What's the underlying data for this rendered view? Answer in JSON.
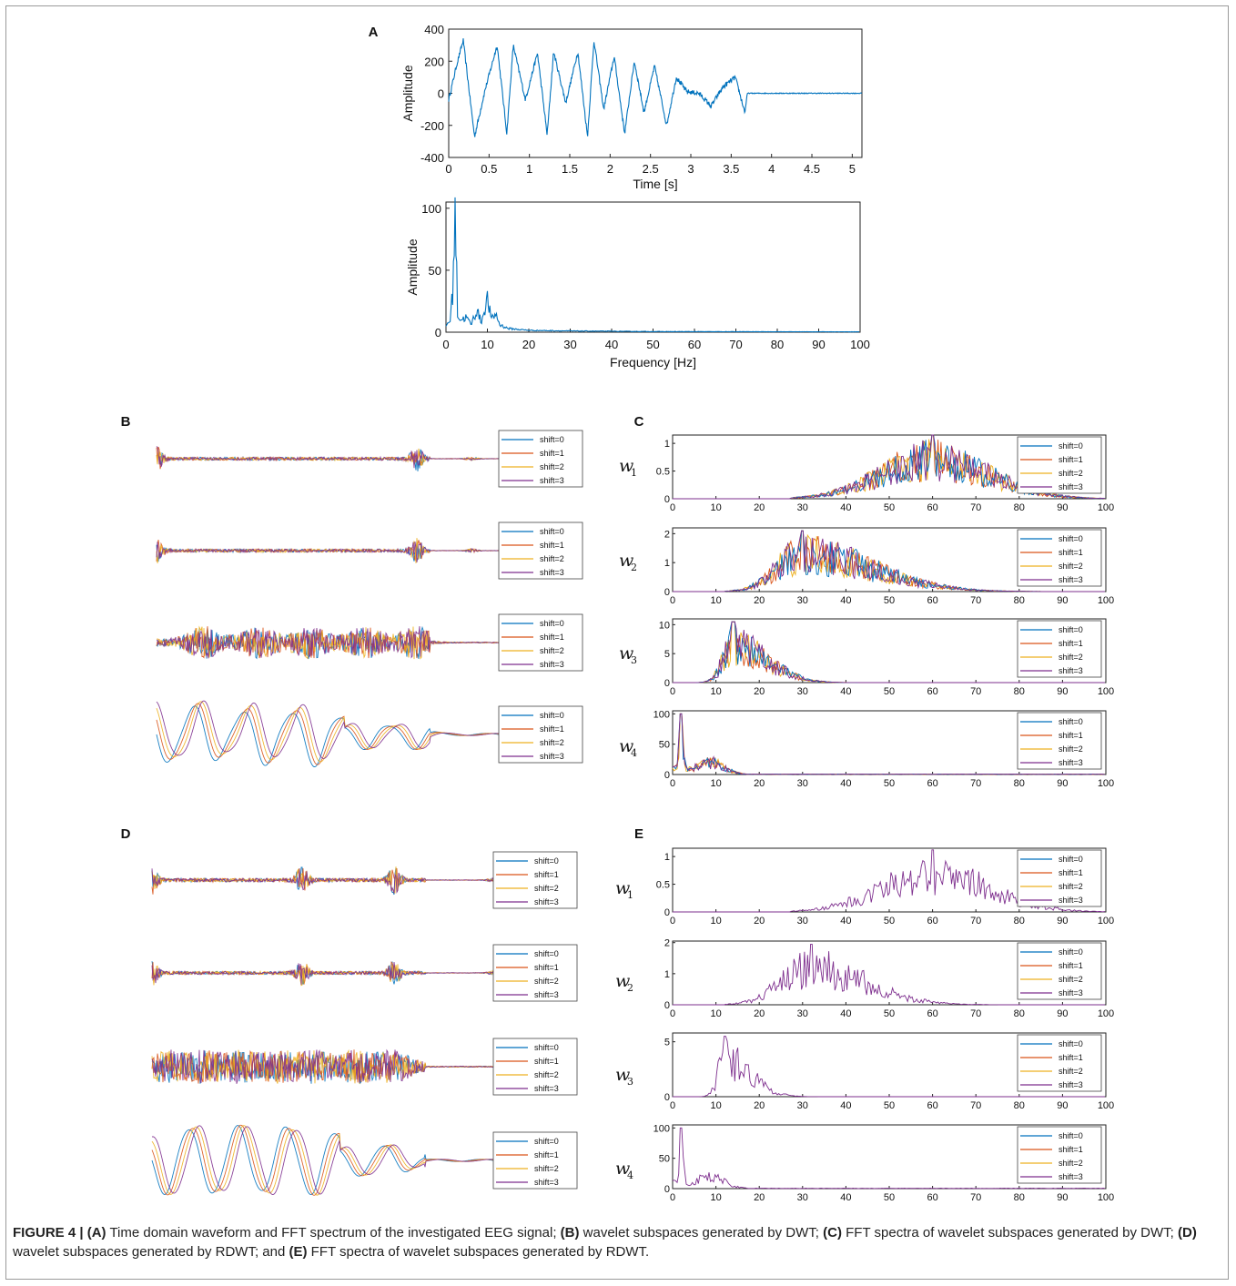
{
  "colors": {
    "signal": "#0072BD",
    "shift0": "#0072BD",
    "shift1": "#D95319",
    "shift2": "#EDB120",
    "shift3": "#7E2F8E",
    "frame": "#9a9a9a"
  },
  "caption": {
    "figure_label": "FIGURE 4 |",
    "parts": [
      {
        "tag": "(A)",
        "text": " Time domain waveform and FFT spectrum of the investigated EEG signal; "
      },
      {
        "tag": "(B)",
        "text": " wavelet subspaces generated by DWT; "
      },
      {
        "tag": "(C)",
        "text": " FFT spectra of wavelet subspaces generated by DWT; "
      },
      {
        "tag": "(D)",
        "text": " wavelet subspaces generated by RDWT; and "
      },
      {
        "tag": "(E)",
        "text": " FFT spectra of wavelet subspaces generated by RDWT."
      }
    ]
  },
  "chart_data": [
    {
      "panel": "A",
      "type": "line",
      "xlabel": "Time [s]",
      "ylabel": "Amplitude",
      "xlim": [
        0,
        5.12
      ],
      "ylim": [
        -400,
        400
      ],
      "xticks": [
        "0",
        "0.5",
        "1",
        "1.5",
        "2",
        "2.5",
        "3",
        "3.5",
        "4",
        "4.5",
        "5"
      ],
      "yticks": [
        "-400",
        "-200",
        "0",
        "200",
        "400"
      ],
      "series": [
        {
          "x": [
            0,
            0.1,
            0.18,
            0.32,
            0.45,
            0.6,
            0.72,
            0.8,
            0.95,
            1.1,
            1.22,
            1.3,
            1.45,
            1.6,
            1.72,
            1.8,
            1.92,
            2.05,
            2.18,
            2.3,
            2.42,
            2.55,
            2.7,
            2.82,
            2.95,
            3.1,
            3.25,
            3.4,
            3.55,
            3.67,
            3.7,
            4.5,
            5.12
          ],
          "y": [
            -40,
            180,
            330,
            -270,
            20,
            300,
            -250,
            300,
            -40,
            250,
            -260,
            260,
            -60,
            260,
            -270,
            330,
            -100,
            230,
            -250,
            200,
            -120,
            170,
            -200,
            100,
            10,
            0,
            -80,
            40,
            100,
            -120,
            0,
            0,
            0
          ]
        }
      ]
    },
    {
      "panel": "A",
      "type": "line",
      "xlabel": "Frequency [Hz]",
      "ylabel": "Amplitude",
      "xlim": [
        0,
        100
      ],
      "ylim": [
        0,
        105
      ],
      "xticks": [
        "0",
        "10",
        "20",
        "30",
        "40",
        "50",
        "60",
        "70",
        "80",
        "90",
        "100"
      ],
      "yticks": [
        "0",
        "50",
        "100"
      ],
      "series": [
        {
          "x": [
            0,
            1,
            1.7,
            2.2,
            2.8,
            3.5,
            5,
            6,
            7.5,
            8.5,
            10,
            11,
            12,
            13,
            15,
            20,
            30,
            50,
            100
          ],
          "y": [
            5,
            10,
            35,
            104,
            15,
            10,
            12,
            6,
            18,
            8,
            27,
            10,
            15,
            6,
            3,
            1.5,
            1,
            0.5,
            0.3
          ]
        }
      ]
    },
    {
      "panel": "B",
      "type": "line",
      "legend": [
        "shift=0",
        "shift=1",
        "shift=2",
        "shift=3"
      ],
      "legend_position": "right",
      "subspaces": [
        {
          "name": "w1",
          "envelope_peaks": [
            0.0,
            0.76,
            0.92
          ]
        },
        {
          "name": "w2",
          "envelope_peaks": [
            0.0,
            0.76,
            0.92
          ]
        },
        {
          "name": "w3",
          "envelope_peaks": [
            0.14,
            0.3,
            0.45,
            0.61,
            0.76
          ]
        },
        {
          "name": "w4",
          "envelope_peaks": [
            0.0,
            0.14,
            0.3,
            0.45,
            0.61,
            0.76
          ]
        }
      ]
    },
    {
      "panel": "C",
      "type": "line",
      "legend": [
        "shift=0",
        "shift=1",
        "shift=2",
        "shift=3"
      ],
      "legend_position": "top-right",
      "xlim": [
        0,
        100
      ],
      "xticks": [
        "0",
        "10",
        "20",
        "30",
        "40",
        "50",
        "60",
        "70",
        "80",
        "90",
        "100"
      ],
      "plots": [
        {
          "name": "w1",
          "ylim": [
            0,
            1.15
          ],
          "yticks": [
            "0",
            "0.5",
            "1"
          ],
          "band": [
            30,
            100
          ],
          "peak_x": 60,
          "peak_y": 1.15
        },
        {
          "name": "w2",
          "ylim": [
            0,
            2.2
          ],
          "yticks": [
            "0",
            "1",
            "2"
          ],
          "band": [
            15,
            80
          ],
          "peak_x": 30,
          "peak_y": 2.1
        },
        {
          "name": "w3",
          "ylim": [
            0,
            11
          ],
          "yticks": [
            "0",
            "5",
            "10"
          ],
          "band": [
            8,
            38
          ],
          "peak_x": 14,
          "peak_y": 10.5
        },
        {
          "name": "w4",
          "ylim": [
            0,
            105
          ],
          "yticks": [
            "0",
            "50",
            "100"
          ],
          "band": [
            0,
            18
          ],
          "peak_x": 2,
          "peak_y": 100
        }
      ]
    },
    {
      "panel": "D",
      "type": "line",
      "legend": [
        "shift=0",
        "shift=1",
        "shift=2",
        "shift=3"
      ],
      "legend_position": "right",
      "subspaces": [
        {
          "name": "w1",
          "envelope_peaks": [
            0.0,
            0.44,
            0.71,
            1.0
          ]
        },
        {
          "name": "w2",
          "envelope_peaks": [
            0.0,
            0.44,
            0.71,
            1.0
          ]
        },
        {
          "name": "w3",
          "envelope_peaks": [
            0.04,
            0.15,
            0.26,
            0.37,
            0.48,
            0.6,
            0.71
          ]
        },
        {
          "name": "w4",
          "envelope_peaks": [
            0.04,
            0.15,
            0.26,
            0.37,
            0.48,
            0.6,
            0.71
          ]
        }
      ]
    },
    {
      "panel": "E",
      "type": "line",
      "legend": [
        "shift=0",
        "shift=1",
        "shift=2",
        "shift=3"
      ],
      "legend_position": "top-right",
      "xlim": [
        0,
        100
      ],
      "xticks": [
        "0",
        "10",
        "20",
        "30",
        "40",
        "50",
        "60",
        "70",
        "80",
        "90",
        "100"
      ],
      "plots": [
        {
          "name": "w1",
          "ylim": [
            0,
            1.15
          ],
          "yticks": [
            "0",
            "0.5",
            "1"
          ],
          "band": [
            30,
            100
          ],
          "peak_x": 60,
          "peak_y": 1.12
        },
        {
          "name": "w2",
          "ylim": [
            0,
            2.05
          ],
          "yticks": [
            "0",
            "1",
            "2"
          ],
          "band": [
            15,
            70
          ],
          "peak_x": 32,
          "peak_y": 1.95
        },
        {
          "name": "w3",
          "ylim": [
            0,
            5.8
          ],
          "yticks": [
            "0",
            "5"
          ],
          "band": [
            8,
            30
          ],
          "peak_x": 12,
          "peak_y": 5.5
        },
        {
          "name": "w4",
          "ylim": [
            0,
            105
          ],
          "yticks": [
            "0",
            "50",
            "100"
          ],
          "band": [
            0,
            18
          ],
          "peak_x": 2,
          "peak_y": 100
        }
      ]
    }
  ]
}
